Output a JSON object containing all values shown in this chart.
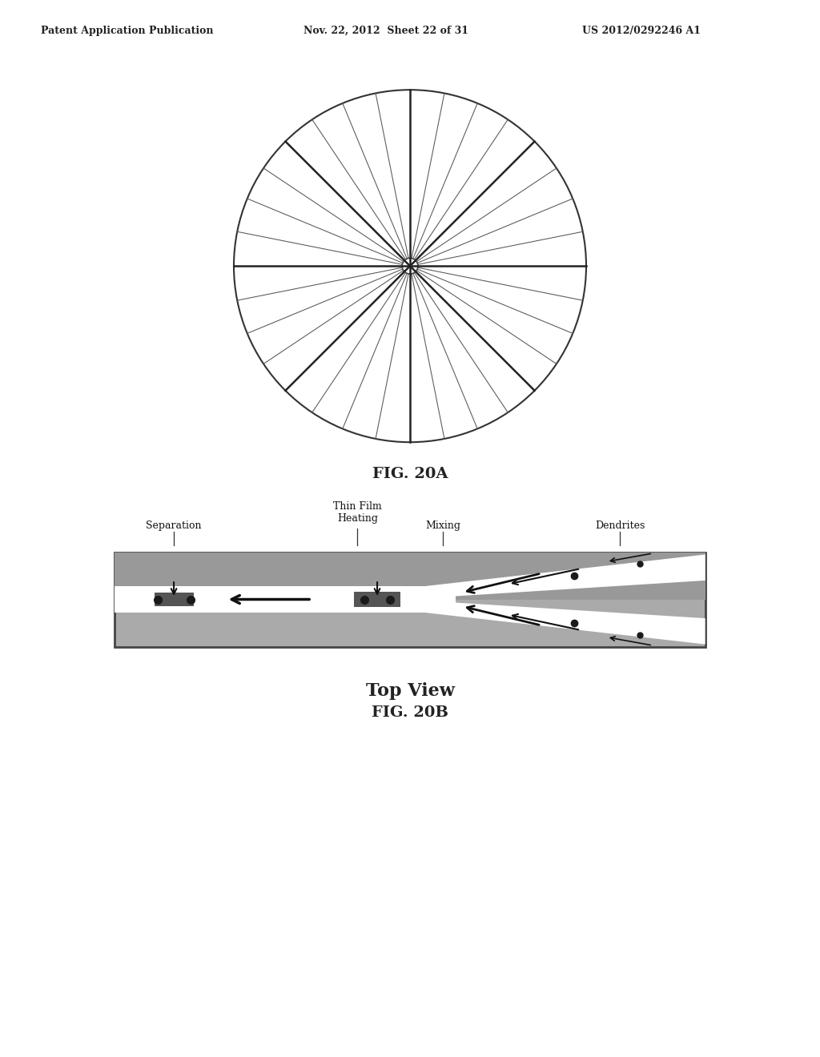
{
  "header_left": "Patent Application Publication",
  "header_mid": "Nov. 22, 2012  Sheet 22 of 31",
  "header_right": "US 2012/0292246 A1",
  "fig_20a_label": "FIG. 20A",
  "fig_20b_label": "FIG. 20B",
  "fig_20b_subtitle": "Top View",
  "num_main_spokes": 8,
  "num_sub_lines": 3,
  "background_color": "#ffffff",
  "line_color_thin": "#555555",
  "line_color_thick": "#222222",
  "gray_device": "#aaaaaa",
  "gray_upper": "#999999",
  "gray_lower": "#bbbbbb"
}
